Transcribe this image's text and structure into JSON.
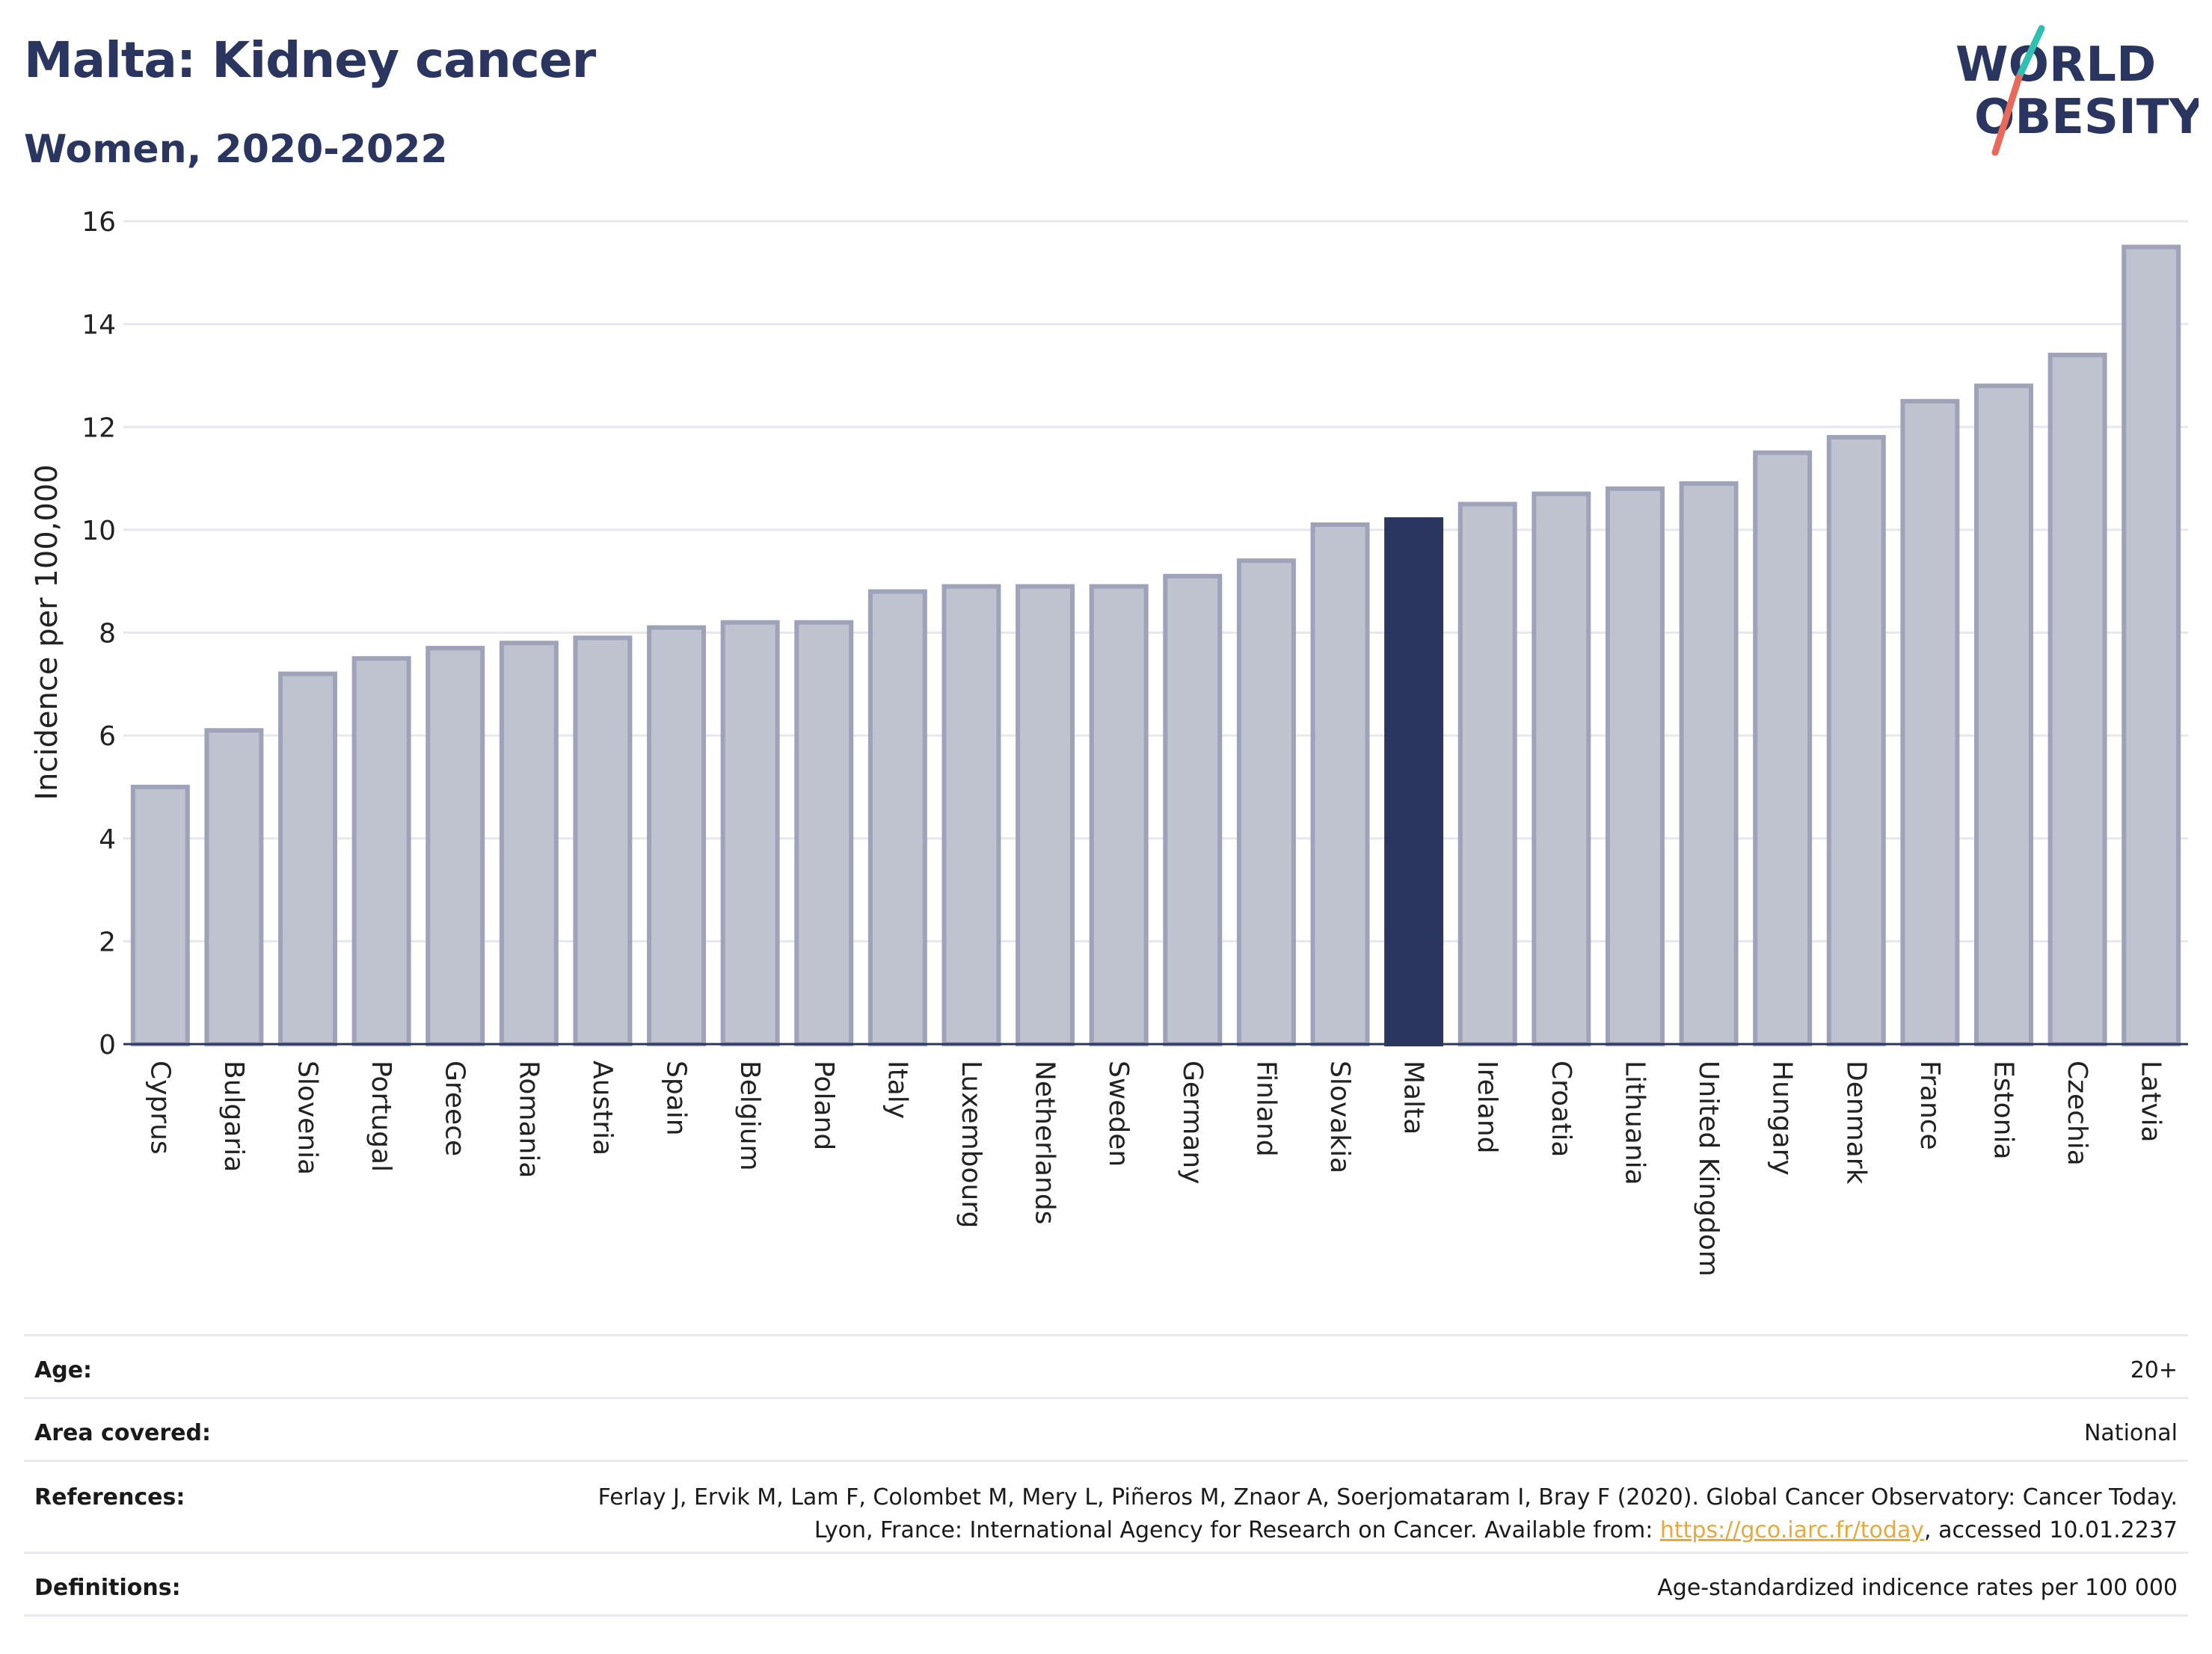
{
  "header": {
    "title": "Malta: Kidney cancer",
    "subtitle": "Women, 2020-2022"
  },
  "logo": {
    "line1": "WORLD",
    "line2": "OBESITY"
  },
  "colors": {
    "highlight": "#2a3560",
    "bar_fill": "#bfc2cf",
    "bar_stroke": "#9ea3ba",
    "title": "#2a3560",
    "link": "#e8a83a",
    "logo_teal": "#2fbfb3",
    "logo_coral": "#e86a5a"
  },
  "chart_data": {
    "type": "bar",
    "ylabel": "Incidence per 100,000",
    "ylim": [
      0,
      16
    ],
    "yticks": [
      0,
      2,
      4,
      6,
      8,
      10,
      12,
      14,
      16
    ],
    "grid": true,
    "highlight": "Malta",
    "categories": [
      "Cyprus",
      "Bulgaria",
      "Slovenia",
      "Portugal",
      "Greece",
      "Romania",
      "Austria",
      "Spain",
      "Belgium",
      "Poland",
      "Italy",
      "Luxembourg",
      "Netherlands",
      "Sweden",
      "Germany",
      "Finland",
      "Slovakia",
      "Malta",
      "Ireland",
      "Croatia",
      "Lithuania",
      "United Kingdom",
      "Hungary",
      "Denmark",
      "France",
      "Estonia",
      "Czechia",
      "Latvia"
    ],
    "values": [
      5.0,
      6.1,
      7.2,
      7.5,
      7.7,
      7.8,
      7.9,
      8.1,
      8.2,
      8.2,
      8.8,
      8.9,
      8.9,
      8.9,
      9.1,
      9.4,
      10.1,
      10.2,
      10.5,
      10.7,
      10.8,
      10.9,
      11.5,
      11.8,
      12.5,
      12.8,
      13.4,
      15.5
    ]
  },
  "footer": {
    "age_label": "Age:",
    "age_value": "20+",
    "area_label": "Area covered:",
    "area_value": "National",
    "references_label": "References:",
    "references_text": "Ferlay J, Ervik M, Lam F, Colombet M, Mery L, Piñeros M, Znaor A, Soerjomataram I, Bray F (2020). Global Cancer Observatory: Cancer Today. Lyon, France: International Agency for Research on Cancer. Available from: ",
    "references_link": "https://gco.iarc.fr/today",
    "references_suffix": ", accessed 10.01.2237",
    "definitions_label": "Definitions:",
    "definitions_value": "Age-standardized indicence rates per 100 000"
  }
}
